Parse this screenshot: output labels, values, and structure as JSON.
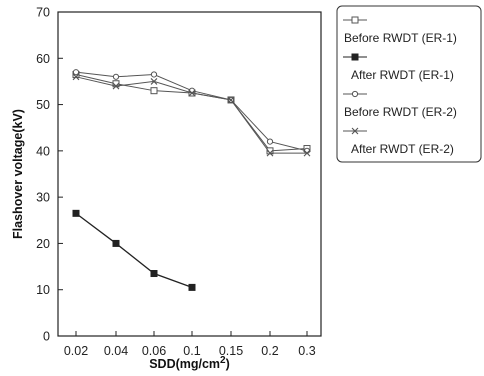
{
  "chart_data": {
    "type": "line",
    "categories": [
      "0.02",
      "0.04",
      "0.06",
      "0.1",
      "0.15",
      "0.2",
      "0.3"
    ],
    "ylabel": "Flashover voltage(kV)",
    "xlabel_main": "SDD(mg/cm",
    "xlabel_sup": "2",
    "xlabel_close": ")",
    "ylim": [
      0,
      70
    ],
    "yticks": [
      "0",
      "10",
      "20",
      "30",
      "40",
      "50",
      "60",
      "70"
    ],
    "grid": false,
    "legend_position": "right",
    "series": [
      {
        "name": "Before RWDT (ER-1)",
        "marker": "open-square",
        "color": "#555555",
        "values": [
          56.5,
          54.5,
          53,
          52.5,
          51,
          40,
          40.5
        ]
      },
      {
        "name": "After RWDT (ER-1)",
        "marker": "filled-square",
        "color": "#222222",
        "values": [
          26.5,
          20,
          13.5,
          10.5,
          null,
          null,
          null
        ]
      },
      {
        "name": "Before RWDT (ER-2)",
        "marker": "open-circle",
        "color": "#555555",
        "values": [
          57,
          56,
          56.5,
          53,
          51,
          42,
          40
        ]
      },
      {
        "name": "After RWDT (ER-2)",
        "marker": "x-cross",
        "color": "#555555",
        "values": [
          56,
          54,
          55,
          52.5,
          51,
          39.5,
          39.5
        ]
      }
    ]
  }
}
